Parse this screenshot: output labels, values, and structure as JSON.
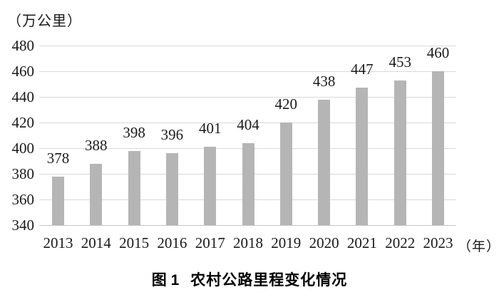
{
  "chart_data": {
    "type": "bar",
    "title": "图1 农村公路里程变化情况",
    "unit_label": "（万公里）",
    "x_unit_label": "（年）",
    "categories": [
      "2013",
      "2014",
      "2015",
      "2016",
      "2017",
      "2018",
      "2019",
      "2020",
      "2021",
      "2022",
      "2023"
    ],
    "values": [
      378,
      388,
      398,
      396,
      401,
      404,
      420,
      438,
      447,
      453,
      460
    ],
    "yticks": [
      340,
      360,
      380,
      400,
      420,
      440,
      460,
      480
    ],
    "ylim": [
      340,
      480
    ],
    "ytick_step": 20,
    "grid": "horizontal",
    "legend": "none",
    "bar_color": "#b5b5b5",
    "gridline_color": "#d9d9d9",
    "text_color": "#1a1a1a"
  },
  "caption": {
    "figure_label": "图 1",
    "figure_title": "农村公路里程变化情况"
  }
}
